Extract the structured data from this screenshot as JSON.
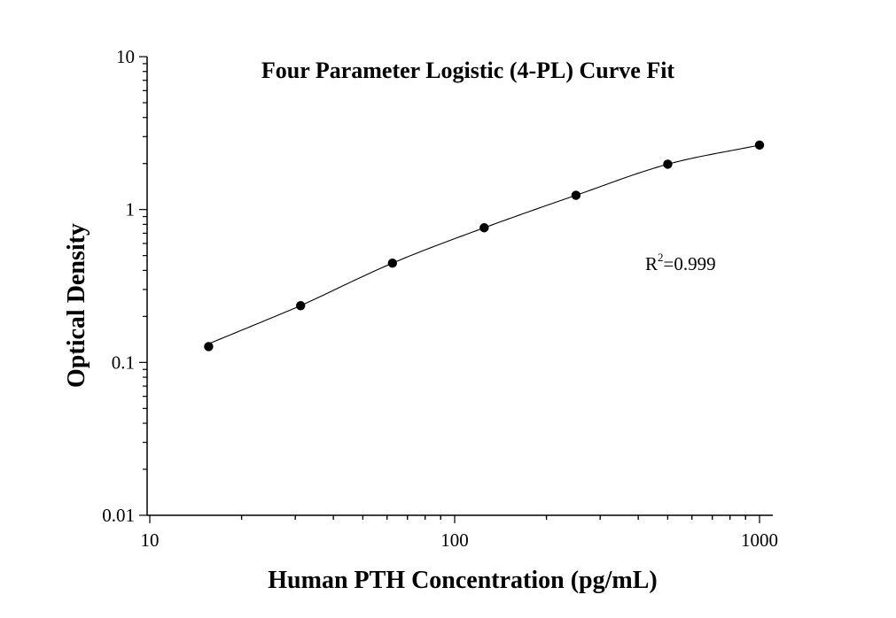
{
  "chart_data": {
    "type": "scatter",
    "title": "Four Parameter Logistic (4-PL) Curve Fit",
    "xlabel": "Human PTH Concentration (pg/mL)",
    "ylabel": "Optical Density",
    "x_scale": "log",
    "y_scale": "log",
    "xlim": [
      10,
      1000
    ],
    "ylim": [
      0.01,
      10
    ],
    "x_ticks": [
      "10",
      "100",
      "1000"
    ],
    "y_ticks": [
      "0.01",
      "0.1",
      "1",
      "10"
    ],
    "grid": false,
    "legend": "none",
    "marker_color": "#000000",
    "line_color": "#000000",
    "points": [
      {
        "x": 15.6,
        "y": 0.127
      },
      {
        "x": 31.25,
        "y": 0.235
      },
      {
        "x": 62.5,
        "y": 0.446
      },
      {
        "x": 125,
        "y": 0.76
      },
      {
        "x": 250,
        "y": 1.24
      },
      {
        "x": 500,
        "y": 1.98
      },
      {
        "x": 1000,
        "y": 2.64
      }
    ],
    "fit": {
      "model": "4-PL",
      "x_range": [
        15.6,
        1000
      ]
    },
    "annotation": {
      "r_label": "R",
      "r_superscript": "2",
      "r_value": "=0.999"
    }
  }
}
